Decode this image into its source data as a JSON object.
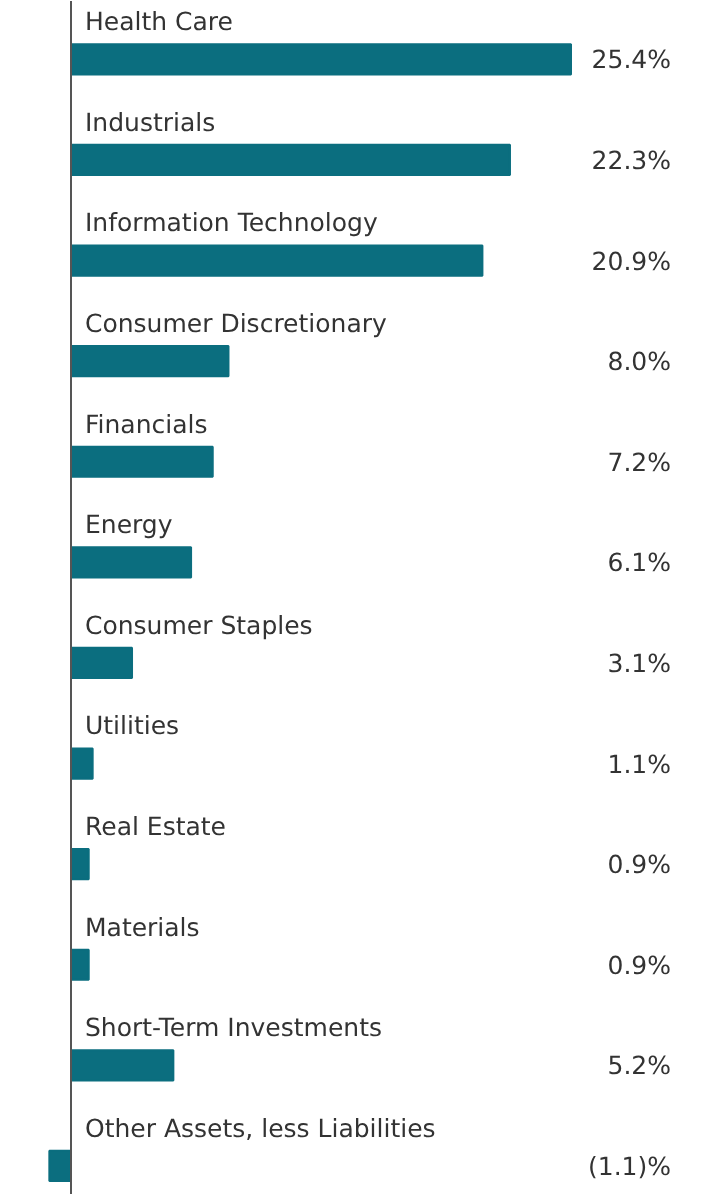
{
  "chart_data": {
    "type": "bar",
    "orientation": "horizontal",
    "color": "#0b6e7f",
    "categories": [
      "Health Care",
      "Industrials",
      "Information Technology",
      "Consumer Discretionary",
      "Financials",
      "Energy",
      "Consumer Staples",
      "Utilities",
      "Real Estate",
      "Materials",
      "Short-Term Investments",
      "Other Assets, less Liabilities"
    ],
    "values": [
      25.4,
      22.3,
      20.9,
      8.0,
      7.2,
      6.1,
      3.1,
      1.1,
      0.9,
      0.9,
      5.2,
      -1.1
    ],
    "value_labels": [
      "25.4%",
      "22.3%",
      "20.9%",
      "8.0%",
      "7.2%",
      "6.1%",
      "3.1%",
      "1.1%",
      "0.9%",
      "0.9%",
      "5.2%",
      "(1.1)%"
    ],
    "grid": false
  }
}
